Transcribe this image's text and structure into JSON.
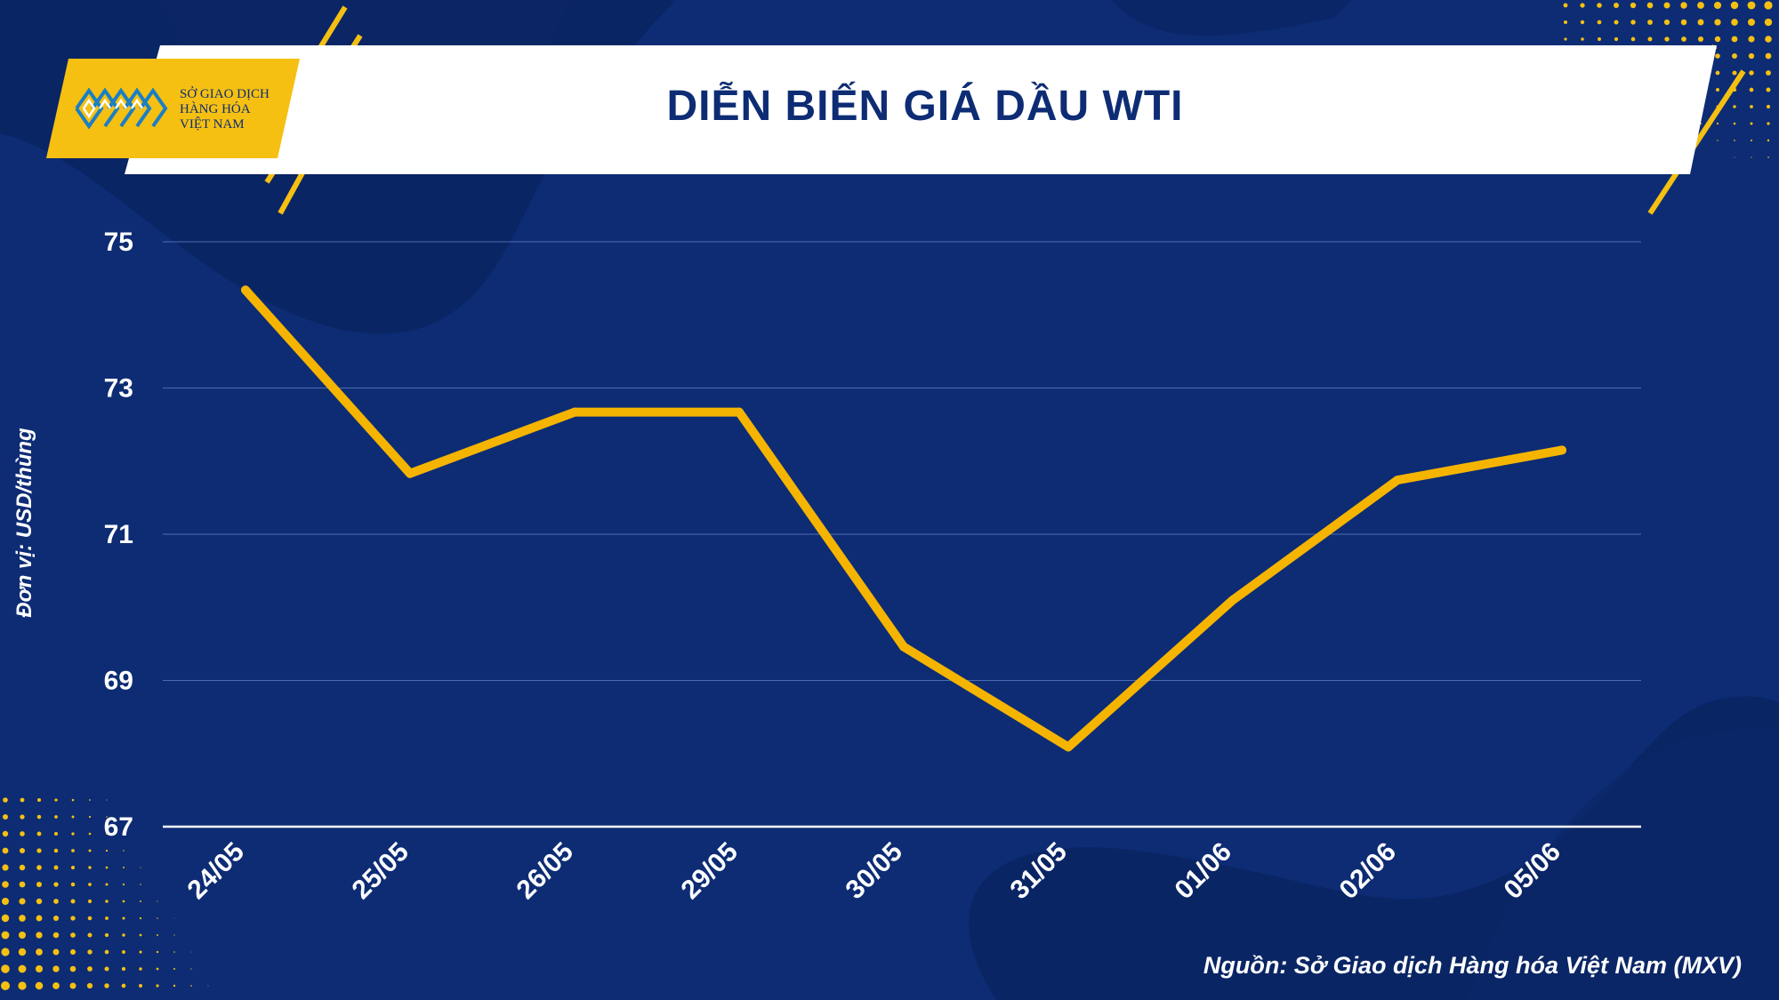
{
  "header": {
    "title": "DIỄN BIẾN GIÁ DẦU WTI",
    "logo_text": [
      "SỞ GIAO DỊCH",
      "HÀNG HÓA",
      "VIỆT NAM"
    ]
  },
  "unit_label": "Đơn vị: USD/thùng",
  "source": "Nguồn: Sở Giao dịch Hàng hóa Việt Nam (MXV)",
  "colors": {
    "background": "#0d2c74",
    "line": "#f5b400",
    "accent": "#f5c012",
    "text": "#ffffff"
  },
  "chart_data": {
    "type": "line",
    "title": "DIỄN BIẾN GIÁ DẦU WTI",
    "xlabel": "",
    "ylabel": "Đơn vị: USD/thùng",
    "categories": [
      "24/05",
      "25/05",
      "26/05",
      "29/05",
      "30/05",
      "31/05",
      "01/06",
      "02/06",
      "05/06"
    ],
    "series": [
      {
        "values": [
          74.34,
          71.83,
          72.67,
          72.67,
          69.46,
          68.09,
          70.1,
          71.74,
          72.15
        ]
      }
    ],
    "ylim": [
      67,
      75
    ],
    "yticks": [
      67,
      69,
      71,
      73,
      75
    ],
    "grid": true,
    "legend": "none"
  }
}
